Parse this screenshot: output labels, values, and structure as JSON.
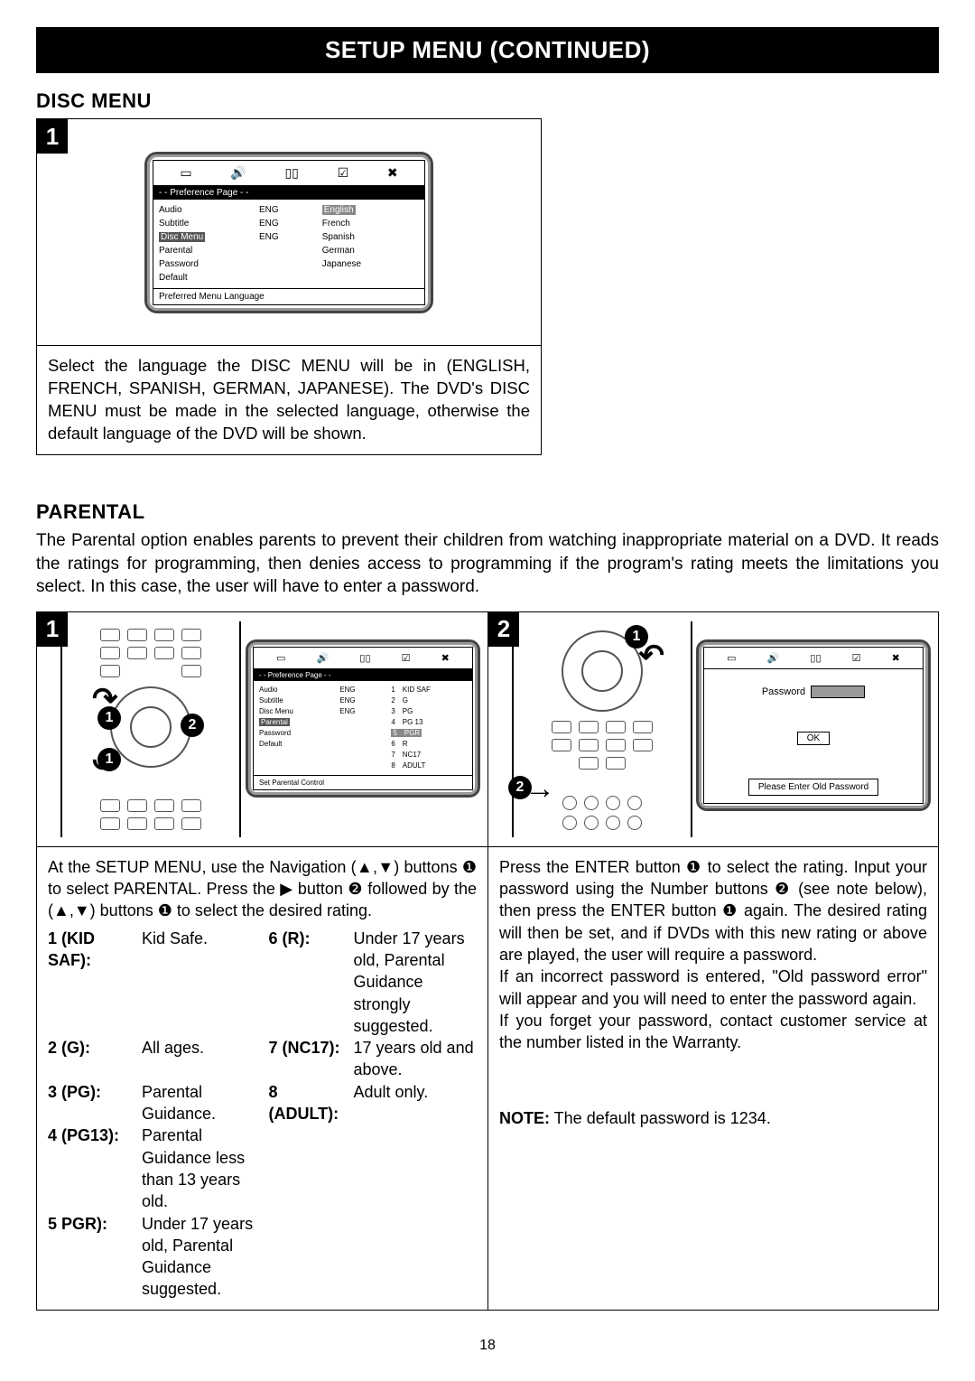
{
  "header": "SETUP MENU (CONTINUED)",
  "disc": {
    "title": "DISC MENU",
    "badge": "1",
    "tv": {
      "pref_header": "- - Preference Page - -",
      "left": [
        "Audio",
        "Subtitle",
        "Disc Menu",
        "Parental",
        "Password",
        "Default"
      ],
      "mid": [
        "ENG",
        "ENG",
        "ENG",
        "",
        "",
        ""
      ],
      "right": [
        "English",
        "French",
        "Spanish",
        "German",
        "Japanese"
      ],
      "footer": "Preferred Menu Language",
      "highlight_left_index": 2,
      "highlight_right_index": 0
    },
    "text": "Select the language the DISC MENU will be in (ENGLISH, FRENCH, SPANISH, GERMAN, JAPANESE). The DVD's DISC MENU must be made in the selected language, otherwise the default language of the DVD will be shown."
  },
  "parental": {
    "title": "PARENTAL",
    "intro": "The Parental option enables parents to prevent their children from watching inappropriate material on a DVD. It reads the ratings for programming, then denies access to programming if the program's rating meets the limitations you select. In this case, the user will have to enter a password.",
    "pane1": {
      "badge": "1",
      "tv": {
        "pref_header": "- - Preference Page - -",
        "left": [
          "Audio",
          "Subtitle",
          "Disc Menu",
          "Parental",
          "Password",
          "Default"
        ],
        "mid": [
          "ENG",
          "ENG",
          "ENG",
          "",
          "",
          ""
        ],
        "right_nums": [
          "1",
          "2",
          "3",
          "4",
          "5",
          "6",
          "7",
          "8"
        ],
        "right_labels": [
          "KID SAF",
          "G",
          "PG",
          "PG 13",
          "PGR",
          "R",
          "NC17",
          "ADULT"
        ],
        "footer": "Set Parental Control",
        "highlight_left_index": 3,
        "highlight_right_index": 4
      },
      "text_a": "At the SETUP MENU, use the Navigation (",
      "text_b": ") buttons ",
      "text_c": " to select PARENTAL. Press the ",
      "text_d": " button ",
      "text_e": " followed by the (",
      "text_f": ") buttons ",
      "text_g": " to select the desired rating.",
      "circ1": "❶",
      "circ2": "❷",
      "up": "▲",
      "down": "▼",
      "right_arrow": "▶",
      "ratings": [
        {
          "k": "1 (KID SAF):",
          "v": "Kid Safe."
        },
        {
          "k": "2 (G):",
          "v": "All ages."
        },
        {
          "k": "3 (PG):",
          "v": "Parental Guidance."
        },
        {
          "k": "4 (PG13):",
          "v": "Parental Guidance less than 13 years old."
        },
        {
          "k": "5 PGR):",
          "v": "Under 17 years old, Parental Guidance suggested."
        },
        {
          "k": "6 (R):",
          "v": "Under 17 years old, Parental Guidance strongly suggested."
        },
        {
          "k": "7 (NC17):",
          "v": "17 years old and above."
        },
        {
          "k": "8 (ADULT):",
          "v": "Adult only."
        }
      ]
    },
    "pane2": {
      "badge": "2",
      "tv": {
        "password_label": "Password",
        "ok": "OK",
        "prompt": "Please Enter Old Password"
      },
      "p1a": "Press the ENTER button ",
      "p1b": " to select the rating. Input your password using the Number buttons ",
      "p1c": " (see note below), then press the ENTER button ",
      "p1d": " again. The desired rating will then be set, and if DVDs with this new rating or above are played, the user will require a password.",
      "p2": "If an incorrect password is entered, \"Old password error\" will appear and you will need to enter the password again.",
      "p3": "If you forget your password, contact customer service at the number listed in the Warranty.",
      "note_label": "NOTE:",
      "note_text": " The default password is 1234.",
      "circ1": "❶",
      "circ2": "❷"
    }
  },
  "page_number": "18",
  "icons": {
    "screen": "▭",
    "sound": "🔊",
    "dolby": "▯▯",
    "check": "☑",
    "x": "✖"
  }
}
